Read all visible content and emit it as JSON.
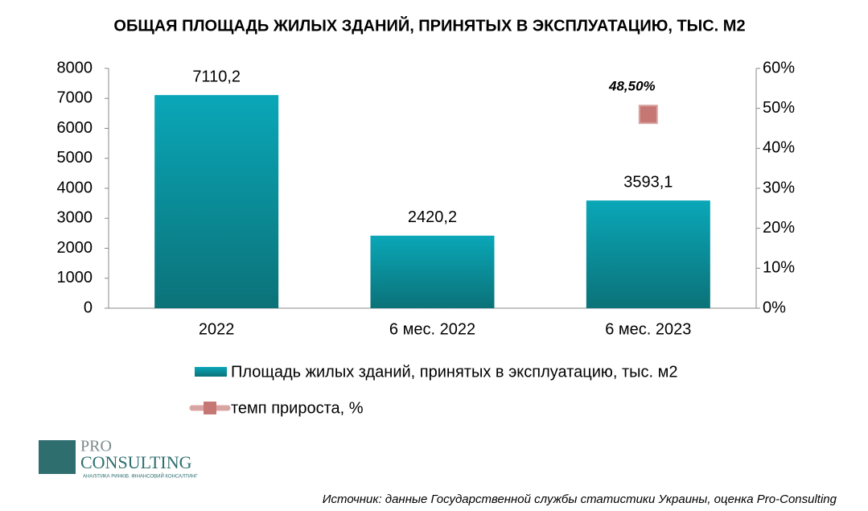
{
  "chart_data": {
    "type": "bar",
    "title": "ОБЩАЯ ПЛОЩАДЬ ЖИЛЫХ ЗДАНИЙ, ПРИНЯТЫХ В ЭКСПЛУАТАЦИЮ, ТЫС. М2",
    "categories": [
      "2022",
      "6 мес. 2022",
      "6 мес. 2023"
    ],
    "series": [
      {
        "name": "Площадь жилых зданий, принятых в эксплуатацию, тыс. м2",
        "type": "bar",
        "color": "#0aa7b8",
        "values": [
          7110.2,
          2420.2,
          3593.1
        ],
        "value_labels": [
          "7110,2",
          "2420,2",
          "3593,1"
        ]
      },
      {
        "name": "темп прироста, %",
        "type": "line",
        "axis": "y2",
        "color": "#c77773",
        "values": [
          null,
          null,
          48.5
        ],
        "value_labels": [
          null,
          null,
          "48,50%"
        ]
      }
    ],
    "ylim": [
      0,
      8000
    ],
    "yticks": [
      0,
      1000,
      2000,
      3000,
      4000,
      5000,
      6000,
      7000,
      8000
    ],
    "y2lim": [
      0,
      60
    ],
    "y2ticks": [
      {
        "value": 0,
        "label": "0%"
      },
      {
        "value": 10,
        "label": "10%"
      },
      {
        "value": 20,
        "label": "20%"
      },
      {
        "value": 30,
        "label": "30%"
      },
      {
        "value": 40,
        "label": "40%"
      },
      {
        "value": 50,
        "label": "50%"
      },
      {
        "value": 60,
        "label": "60%"
      }
    ],
    "grid": false,
    "legend": "bottom",
    "logo": {
      "line1": "PRO",
      "line2": "CONSULTING",
      "tagline": "АНАЛІТИКА РИНКІВ. ФІНАНСОВИЙ КОНСАЛТИНГ"
    },
    "source": "Источник: данные Государственной службы статистики Украины, оценка Pro-Consulting"
  }
}
